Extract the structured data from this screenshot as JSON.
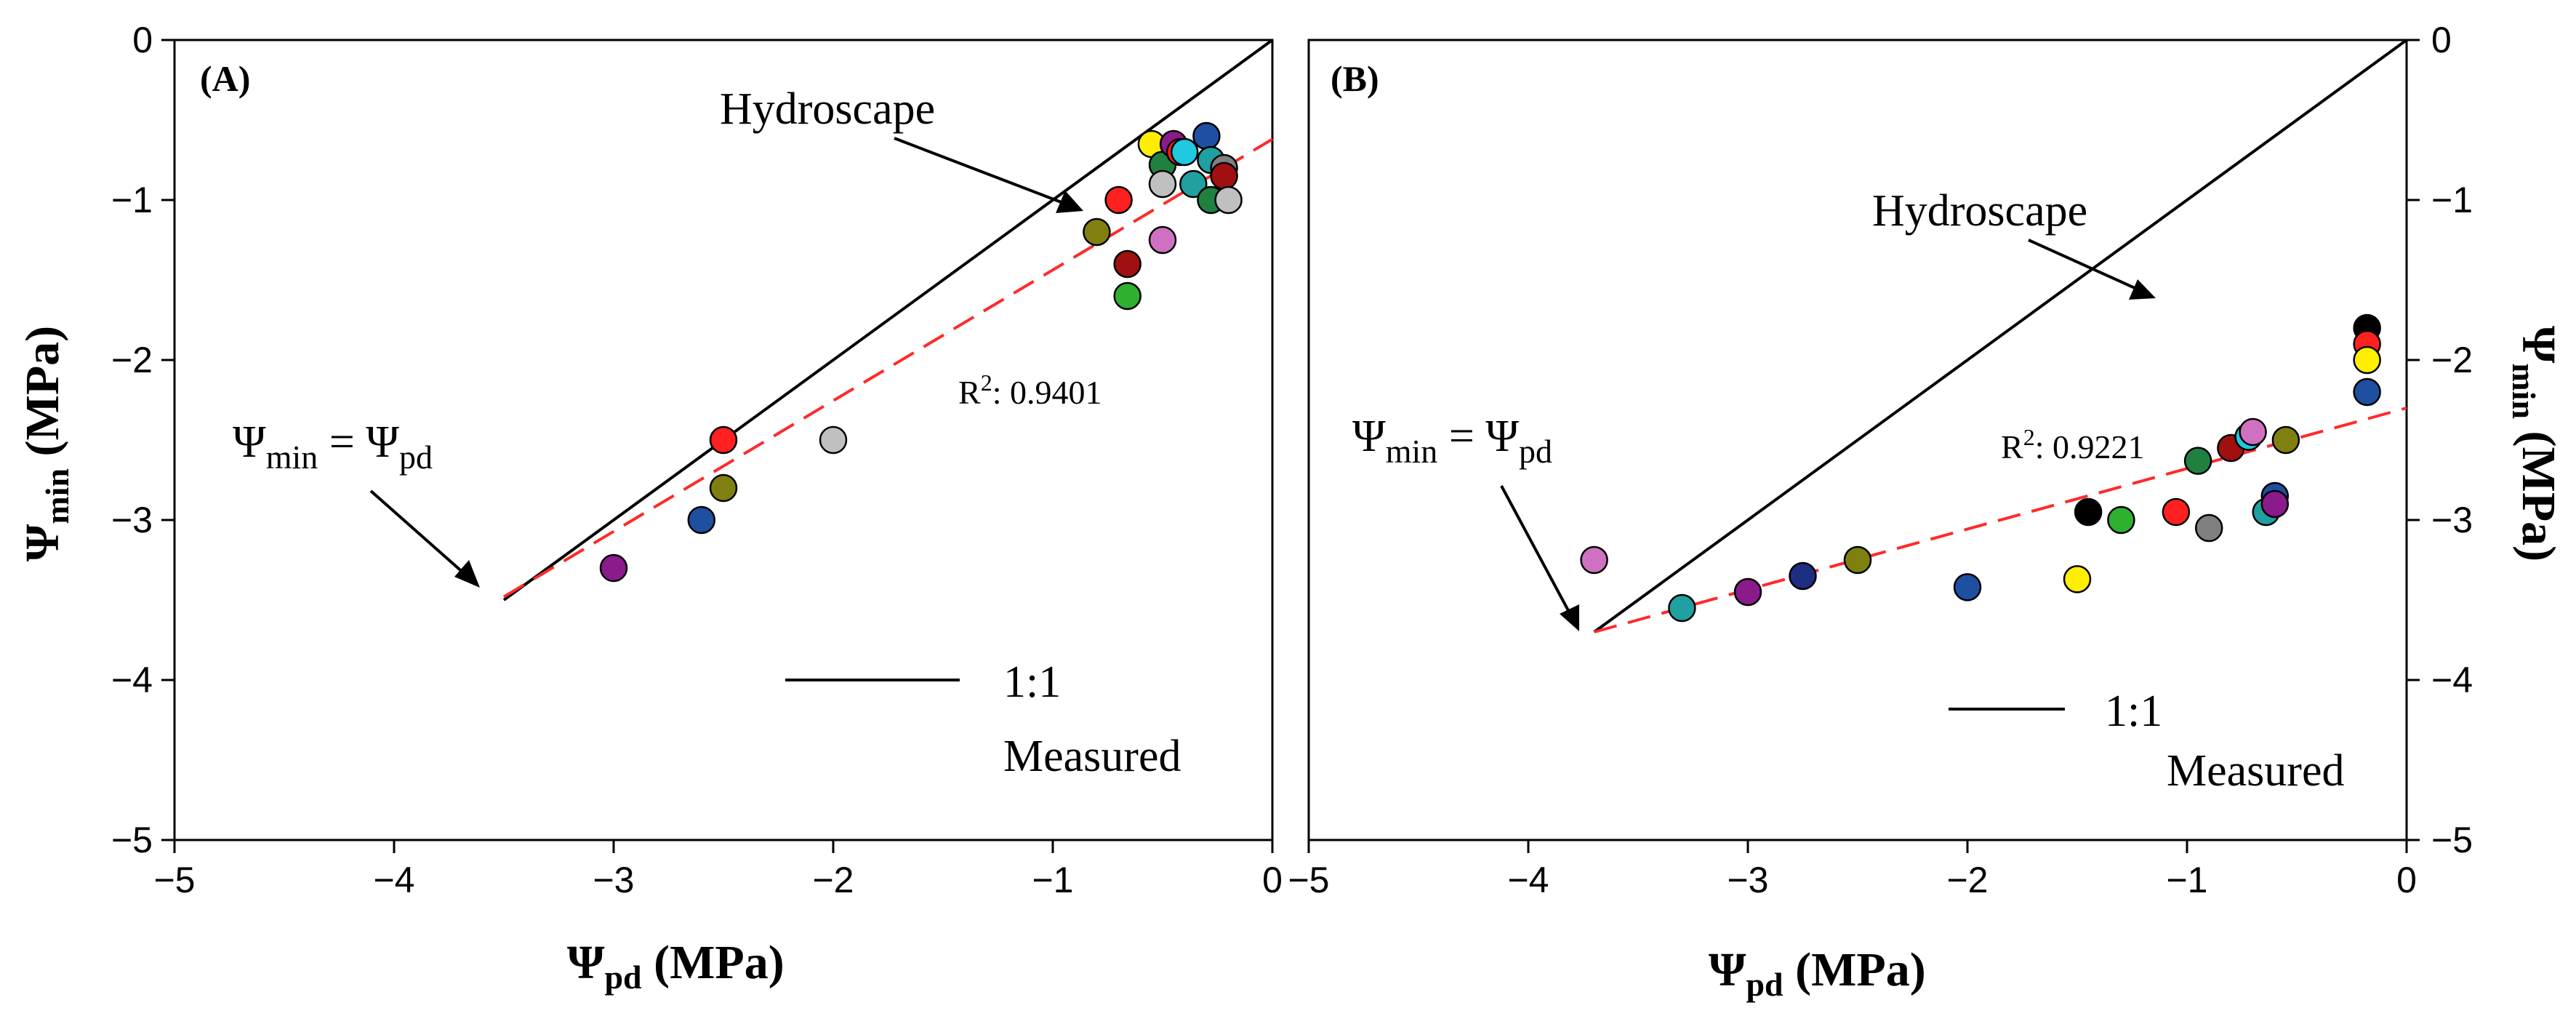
{
  "figure_title": "",
  "chart_data": [
    {
      "type": "scatter",
      "panel_label": "(A)",
      "xlabel": "Ψpd (MPa)",
      "xlabel_main": "Ψ",
      "xlabel_sub": "pd",
      "xlabel_unit": " (MPa)",
      "ylabel": "Ψmin (MPa)",
      "ylabel_main": "Ψ",
      "ylabel_sub": "min",
      "ylabel_unit": " (MPa)",
      "xlim": [
        -5,
        0
      ],
      "ylim": [
        -5,
        0
      ],
      "xticks": [
        -5,
        -4,
        -3,
        -2,
        -1,
        0
      ],
      "yticks": [
        0,
        -1,
        -2,
        -3,
        -4,
        -5
      ],
      "xtick_labels": [
        "−5",
        "−4",
        "−3",
        "−2",
        "−1",
        "0"
      ],
      "ytick_labels": [
        "0",
        "−1",
        "−2",
        "−3",
        "−4",
        "−5"
      ],
      "y_axis_side": "left",
      "one_to_one_line": {
        "x": [
          -3.5,
          0
        ],
        "y": [
          -3.5,
          0
        ]
      },
      "measured_fit": {
        "x": [
          -3.5,
          0
        ],
        "y": [
          -3.48,
          -0.62
        ],
        "r2_label": "R",
        "r2_sup": "2",
        "r2_value": ": 0.9401"
      },
      "annotations": {
        "hydroscape": "Hydroscape",
        "equality_main_left": "Ψ",
        "equality_sub_left": "min",
        "equality_eq": " = Ψ",
        "equality_sub_right": "pd"
      },
      "legend": {
        "line_label": "1:1",
        "measured_label": "Measured"
      },
      "points": [
        {
          "x": -3.0,
          "y": -3.3,
          "color": "#8B1A8B"
        },
        {
          "x": -2.6,
          "y": -3.0,
          "color": "#1E4FA0"
        },
        {
          "x": -2.5,
          "y": -2.5,
          "color": "#FF2020"
        },
        {
          "x": -2.5,
          "y": -2.8,
          "color": "#808010"
        },
        {
          "x": -2.0,
          "y": -2.5,
          "color": "#C0C0C0"
        },
        {
          "x": -0.8,
          "y": -1.2,
          "color": "#808010"
        },
        {
          "x": -0.7,
          "y": -1.0,
          "color": "#FF2020"
        },
        {
          "x": -0.66,
          "y": -1.4,
          "color": "#A01010"
        },
        {
          "x": -0.66,
          "y": -1.6,
          "color": "#30B030"
        },
        {
          "x": -0.55,
          "y": -0.65,
          "color": "#FFEE00"
        },
        {
          "x": -0.5,
          "y": -0.78,
          "color": "#208040"
        },
        {
          "x": -0.5,
          "y": -0.9,
          "color": "#C0C0C0"
        },
        {
          "x": -0.5,
          "y": -1.25,
          "color": "#D070C0"
        },
        {
          "x": -0.45,
          "y": -0.65,
          "color": "#8B1A8B"
        },
        {
          "x": -0.42,
          "y": -0.7,
          "color": "#FF2020"
        },
        {
          "x": -0.4,
          "y": -0.7,
          "color": "#20C8E0"
        },
        {
          "x": -0.36,
          "y": -0.9,
          "color": "#20A0A0"
        },
        {
          "x": -0.3,
          "y": -0.6,
          "color": "#1E4FA0"
        },
        {
          "x": -0.28,
          "y": -0.75,
          "color": "#20A0A0"
        },
        {
          "x": -0.28,
          "y": -1.0,
          "color": "#208040"
        },
        {
          "x": -0.22,
          "y": -0.8,
          "color": "#808080"
        },
        {
          "x": -0.22,
          "y": -0.85,
          "color": "#A01010"
        },
        {
          "x": -0.2,
          "y": -1.0,
          "color": "#C0C0C0"
        }
      ]
    },
    {
      "type": "scatter",
      "panel_label": "(B)",
      "xlabel": "Ψpd (MPa)",
      "xlabel_main": "Ψ",
      "xlabel_sub": "pd",
      "xlabel_unit": " (MPa)",
      "ylabel": "Ψmin (MPa)",
      "ylabel_main": "Ψ",
      "ylabel_sub": "min",
      "ylabel_unit": " (MPa)",
      "xlim": [
        -5,
        0
      ],
      "ylim": [
        -5,
        0
      ],
      "xticks": [
        -5,
        -4,
        -3,
        -2,
        -1,
        0
      ],
      "yticks": [
        0,
        -1,
        -2,
        -3,
        -4,
        -5
      ],
      "xtick_labels": [
        "−5",
        "−4",
        "−3",
        "−2",
        "−1",
        "0"
      ],
      "ytick_labels": [
        "0",
        "−1",
        "−2",
        "−3",
        "−4",
        "−5"
      ],
      "y_axis_side": "right",
      "one_to_one_line": {
        "x": [
          -3.7,
          0
        ],
        "y": [
          -3.7,
          0
        ]
      },
      "measured_fit": {
        "x": [
          -3.7,
          0
        ],
        "y": [
          -3.7,
          -2.3
        ],
        "r2_label": "R",
        "r2_sup": "2",
        "r2_value": ": 0.9221"
      },
      "annotations": {
        "hydroscape": "Hydroscape",
        "equality_main_left": "Ψ",
        "equality_sub_left": "min",
        "equality_eq": " = Ψ",
        "equality_sub_right": "pd"
      },
      "legend": {
        "line_label": "1:1",
        "measured_label": "Measured"
      },
      "points": [
        {
          "x": -3.7,
          "y": -3.25,
          "color": "#D070C0"
        },
        {
          "x": -3.3,
          "y": -3.55,
          "color": "#20A0A0"
        },
        {
          "x": -3.0,
          "y": -3.45,
          "color": "#8B1A8B"
        },
        {
          "x": -2.75,
          "y": -3.35,
          "color": "#1E2E80"
        },
        {
          "x": -2.5,
          "y": -3.25,
          "color": "#808010"
        },
        {
          "x": -2.0,
          "y": -3.42,
          "color": "#1E4FA0"
        },
        {
          "x": -1.5,
          "y": -3.37,
          "color": "#FFEE00"
        },
        {
          "x": -1.45,
          "y": -2.95,
          "color": "#000000"
        },
        {
          "x": -1.3,
          "y": -3.0,
          "color": "#30B030"
        },
        {
          "x": -1.05,
          "y": -2.95,
          "color": "#FF2020"
        },
        {
          "x": -0.95,
          "y": -2.63,
          "color": "#208040"
        },
        {
          "x": -0.9,
          "y": -3.05,
          "color": "#808080"
        },
        {
          "x": -0.8,
          "y": -2.55,
          "color": "#A01010"
        },
        {
          "x": -0.72,
          "y": -2.48,
          "color": "#20C8E0"
        },
        {
          "x": -0.7,
          "y": -2.45,
          "color": "#D070C0"
        },
        {
          "x": -0.64,
          "y": -2.95,
          "color": "#20A0A0"
        },
        {
          "x": -0.6,
          "y": -2.85,
          "color": "#1E4FA0"
        },
        {
          "x": -0.6,
          "y": -2.9,
          "color": "#8B1A8B"
        },
        {
          "x": -0.55,
          "y": -2.5,
          "color": "#808010"
        },
        {
          "x": -0.18,
          "y": -1.8,
          "color": "#000000"
        },
        {
          "x": -0.18,
          "y": -1.9,
          "color": "#FF2020"
        },
        {
          "x": -0.18,
          "y": -2.0,
          "color": "#FFEE00"
        },
        {
          "x": -0.18,
          "y": -2.2,
          "color": "#1E4FA0"
        }
      ]
    }
  ]
}
